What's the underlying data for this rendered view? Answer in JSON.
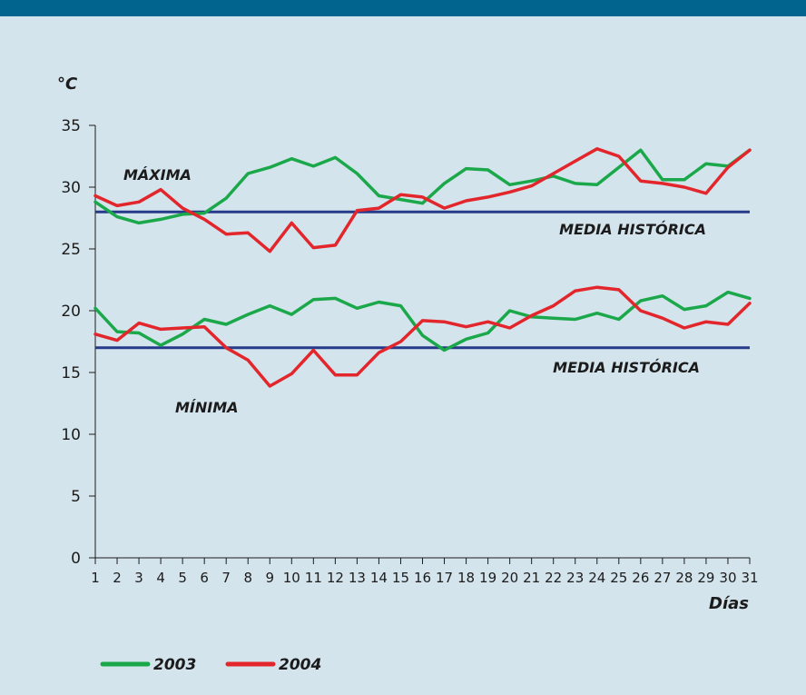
{
  "chart_data": {
    "type": "line",
    "ylabel": "°C",
    "xlabel": "Días",
    "ylim": [
      0,
      35
    ],
    "yticks": [
      0,
      5,
      10,
      15,
      20,
      25,
      30,
      35
    ],
    "x": [
      1,
      2,
      3,
      4,
      5,
      6,
      7,
      8,
      9,
      10,
      11,
      12,
      13,
      14,
      15,
      16,
      17,
      18,
      19,
      20,
      21,
      22,
      23,
      24,
      25,
      26,
      27,
      28,
      29,
      30,
      31
    ],
    "colors": {
      "2003": "#1aa84a",
      "2004": "#e2262b",
      "reference": "#263a8c"
    },
    "reference_lines": [
      {
        "label": "MEDIA HISTÓRICA",
        "value": 28
      },
      {
        "label": "MEDIA HISTÓRICA",
        "value": 17
      }
    ],
    "annotations": {
      "max": "MÁXIMA",
      "min": "MÍNIMA"
    },
    "series": [
      {
        "name": "2003",
        "group": "max",
        "values": [
          28.8,
          27.6,
          27.1,
          27.4,
          27.8,
          27.9,
          29.1,
          31.1,
          31.6,
          32.3,
          31.7,
          32.4,
          31.1,
          29.3,
          29.0,
          28.7,
          30.3,
          31.5,
          31.4,
          30.2,
          30.5,
          30.9,
          30.3,
          30.2,
          31.6,
          33.0,
          30.6,
          30.6,
          31.9,
          31.7,
          33.0
        ]
      },
      {
        "name": "2004",
        "group": "max",
        "values": [
          29.3,
          28.5,
          28.8,
          29.8,
          28.3,
          27.4,
          26.2,
          26.3,
          24.8,
          27.1,
          25.1,
          25.3,
          28.1,
          28.3,
          29.4,
          29.2,
          28.3,
          28.9,
          29.2,
          29.6,
          30.1,
          31.1,
          32.1,
          33.1,
          32.5,
          30.5,
          30.3,
          30.0,
          29.5,
          31.6,
          33.0
        ]
      },
      {
        "name": "2003",
        "group": "min",
        "values": [
          20.2,
          18.3,
          18.2,
          17.2,
          18.1,
          19.3,
          18.9,
          19.7,
          20.4,
          19.7,
          20.9,
          21.0,
          20.2,
          20.7,
          20.4,
          18.0,
          16.8,
          17.7,
          18.2,
          20.0,
          19.5,
          19.4,
          19.3,
          19.8,
          19.3,
          20.8,
          21.2,
          20.1,
          20.4,
          21.5,
          21.0
        ]
      },
      {
        "name": "2004",
        "group": "min",
        "values": [
          18.1,
          17.6,
          19.0,
          18.5,
          18.6,
          18.7,
          17.0,
          16.0,
          13.9,
          14.9,
          16.8,
          14.8,
          14.8,
          16.6,
          17.5,
          19.2,
          19.1,
          18.7,
          19.1,
          18.6,
          19.6,
          20.4,
          21.6,
          21.9,
          21.7,
          20.0,
          19.4,
          18.6,
          19.1,
          18.9,
          20.6
        ]
      }
    ],
    "legend": [
      {
        "name": "2003",
        "color": "#1aa84a"
      },
      {
        "name": "2004",
        "color": "#e2262b"
      }
    ],
    "legend_position": "bottom-left",
    "grid": false
  }
}
